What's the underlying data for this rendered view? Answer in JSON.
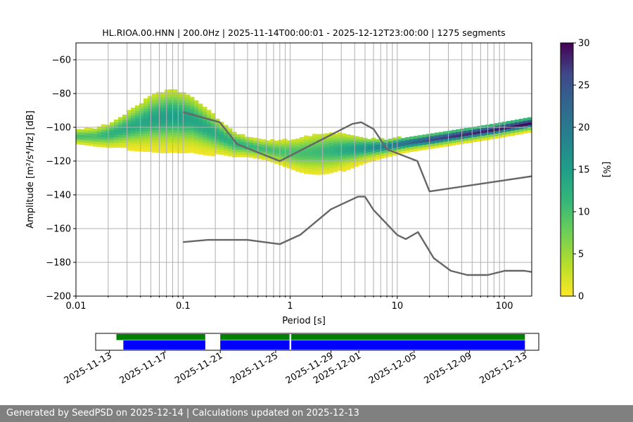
{
  "footer": "Generated by SeedPSD on 2025-12-14 | Calculations updated on 2025-12-13",
  "chart_data": [
    {
      "type": "heatmap",
      "title": "HL.RIOA.00.HNN | 200.0Hz | 2025-11-14T00:00:01 - 2025-12-12T23:00:00 | 1275 segments",
      "xlabel": "Period [s]",
      "ylabel": "Amplitude [m²/s⁴/Hz] [dB]",
      "x_scale": "log",
      "xlim": [
        0.01,
        180
      ],
      "ylim": [
        -200,
        -50
      ],
      "x_ticks": [
        0.01,
        0.1,
        1,
        10,
        100
      ],
      "x_tick_labels": [
        "0.01",
        "0.1",
        "1",
        "10",
        "100"
      ],
      "y_ticks": [
        -200,
        -180,
        -160,
        -140,
        -120,
        -100,
        -80,
        -60
      ],
      "y_tick_labels": [
        "−200",
        "−180",
        "−160",
        "−140",
        "−120",
        "−100",
        "−80",
        "−60"
      ],
      "grid": true,
      "colorbar": {
        "label": "[%]",
        "range": [
          0,
          30
        ],
        "ticks": [
          0,
          5,
          10,
          15,
          20,
          25,
          30
        ],
        "colormap": "viridis_r"
      },
      "main_band": {
        "x": [
          0.01,
          0.015,
          0.02,
          0.03,
          0.05,
          0.08,
          0.12,
          0.2,
          0.3,
          0.5,
          0.8,
          1.2,
          2,
          3,
          5,
          8,
          12,
          20,
          40,
          80,
          180
        ],
        "y": [
          -106,
          -106,
          -105,
          -101,
          -96,
          -94,
          -96,
          -104,
          -110,
          -113,
          -115,
          -116,
          -115,
          -114,
          -113,
          -112,
          -110,
          -108,
          -105,
          -102,
          -98
        ],
        "peak_pct": [
          10,
          10,
          12,
          13,
          14,
          15,
          14,
          13,
          12,
          11,
          10,
          10,
          11,
          13,
          16,
          20,
          22,
          26,
          28,
          29,
          30
        ]
      },
      "noise_models": [
        {
          "x": [
            0.1,
            0.22,
            0.32,
            0.8,
            3.8,
            4.6,
            6,
            8,
            15.4,
            20,
            180
          ],
          "y": [
            -91,
            -97,
            -110,
            -120,
            -98,
            -97,
            -101,
            -113,
            -120,
            -138,
            -129
          ]
        },
        {
          "x": [
            0.1,
            0.17,
            0.4,
            0.8,
            1.24,
            2.4,
            4.3,
            5,
            6,
            10,
            12,
            15.6,
            21.9,
            31.6,
            45,
            70,
            101,
            154,
            180
          ],
          "y": [
            -168,
            -166.7,
            -166.7,
            -169.2,
            -163.7,
            -148.6,
            -141.1,
            -141.1,
            -149,
            -163.8,
            -166.2,
            -162.1,
            -177.5,
            -185,
            -187.5,
            -187.5,
            -185,
            -185,
            -185.7
          ]
        }
      ]
    },
    {
      "type": "bar",
      "title": "",
      "x_tick_labels": [
        "2025-11-13",
        "2025-11-17",
        "2025-11-21",
        "2025-11-25",
        "2025-11-29",
        "2025-12-01",
        "2025-12-05",
        "2025-12-09",
        "2025-12-13"
      ],
      "x_tick_dates": [
        "2025-11-13",
        "2025-11-17",
        "2025-11-21",
        "2025-11-25",
        "2025-11-29",
        "2025-12-01",
        "2025-12-05",
        "2025-12-09",
        "2025-12-13"
      ],
      "xlim": [
        "2025-11-12",
        "2025-12-14"
      ],
      "series": [
        {
          "color": "#008000",
          "segments": [
            [
              "2025-11-13T12:00",
              "2025-11-19T22:00"
            ],
            [
              "2025-11-21T00:00",
              "2025-11-26T00:00"
            ],
            [
              "2025-11-26T03:00",
              "2025-12-13T00:00"
            ]
          ]
        },
        {
          "color": "#0000ff",
          "segments": [
            [
              "2025-11-14T00:00",
              "2025-11-19T22:00"
            ],
            [
              "2025-11-21T00:00",
              "2025-11-26T00:00"
            ],
            [
              "2025-11-26T03:00",
              "2025-12-13T00:00"
            ]
          ]
        }
      ]
    }
  ]
}
